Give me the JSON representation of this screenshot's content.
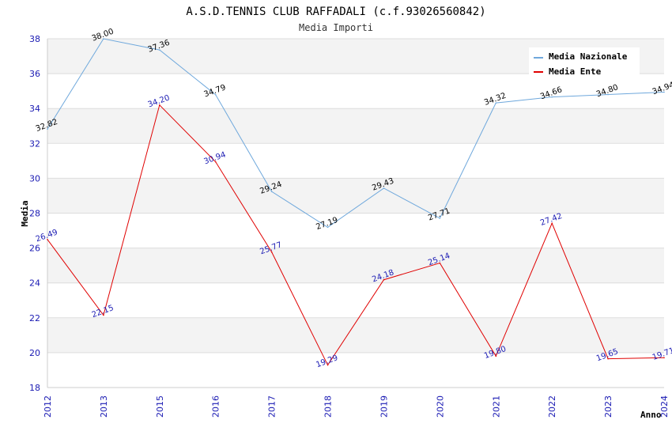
{
  "chart_data": {
    "type": "line",
    "title": "A.S.D.TENNIS CLUB RAFFADALI (c.f.93026560842)",
    "subtitle": "Media Importi",
    "xlabel": "Anno",
    "ylabel": "Media",
    "ylim": [
      18,
      38
    ],
    "yticks": [
      18,
      20,
      22,
      24,
      26,
      28,
      30,
      32,
      34,
      36,
      38
    ],
    "categories": [
      "2012",
      "2013",
      "2015",
      "2016",
      "2017",
      "2018",
      "2019",
      "2020",
      "2021",
      "2022",
      "2023",
      "2024"
    ],
    "grid": "horizontal alternating bands",
    "legend_position": "top-right",
    "series": [
      {
        "name": "Media Nazionale",
        "color": "#6fa8dc",
        "label_color": "#000000",
        "values": [
          32.82,
          38.0,
          37.36,
          34.79,
          29.24,
          27.19,
          29.43,
          27.71,
          34.32,
          34.66,
          34.8,
          34.94
        ],
        "labels": [
          "32.82",
          "38.00",
          "37.36",
          "34.79",
          "29.24",
          "27.19",
          "29.43",
          "27.71",
          "34.32",
          "34.66",
          "34.80",
          "34.94"
        ]
      },
      {
        "name": "Media Ente",
        "color": "#e00000",
        "label_color": "#1a1ab3",
        "values": [
          26.49,
          22.15,
          34.2,
          30.94,
          25.77,
          19.29,
          24.18,
          25.14,
          19.8,
          27.42,
          19.65,
          19.71
        ],
        "labels": [
          "26.49",
          "22.15",
          "34.20",
          "30.94",
          "25.77",
          "19.29",
          "24.18",
          "25.14",
          "19.80",
          "27.42",
          "19.65",
          "19.71"
        ]
      }
    ]
  }
}
